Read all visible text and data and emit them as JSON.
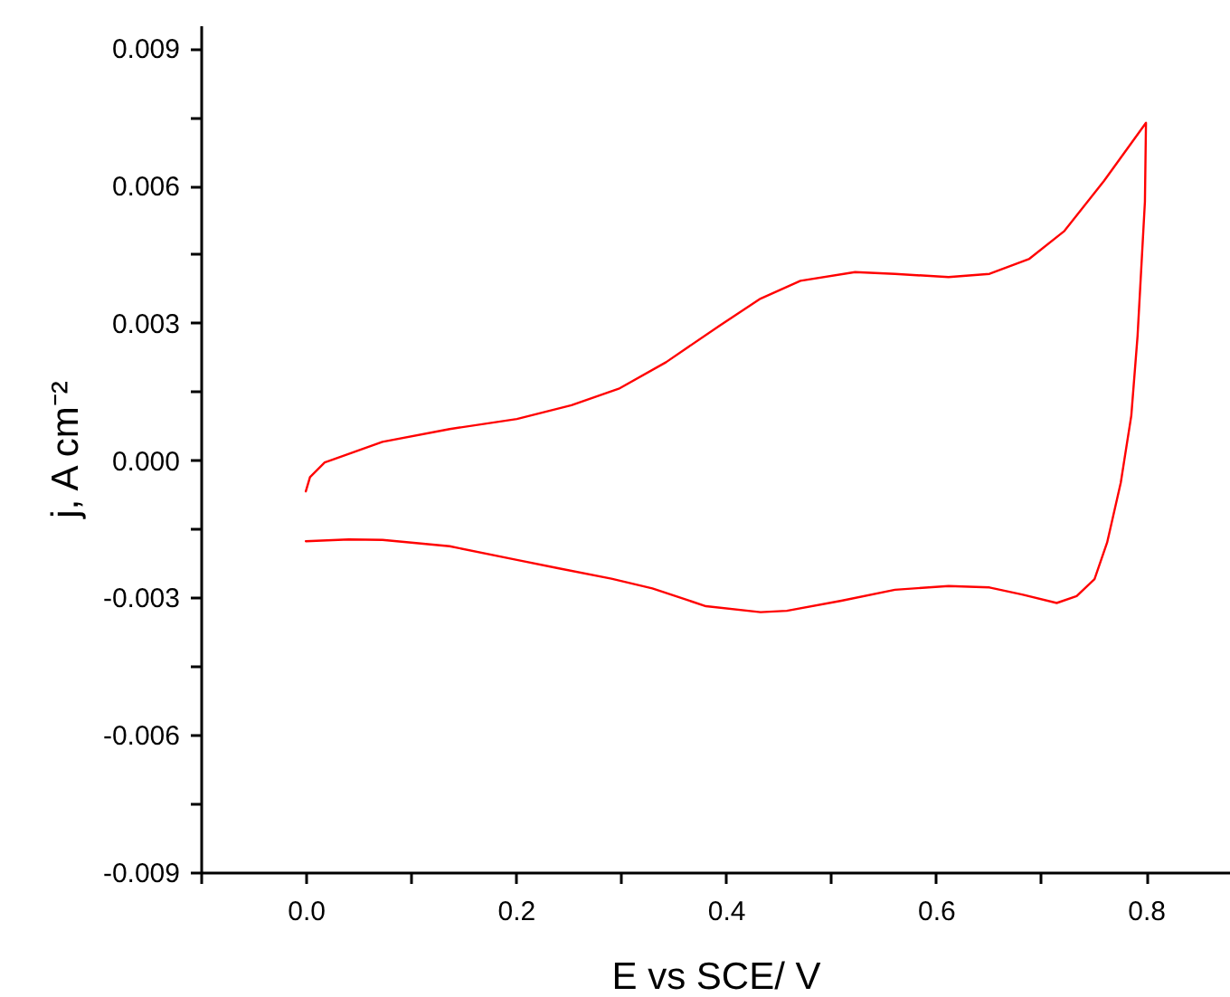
{
  "chart_data": {
    "type": "line",
    "xlabel": "E vs SCE/ V",
    "ylabel": "j, A cm⁻²",
    "xlim": [
      -0.1,
      0.88
    ],
    "ylim": [
      -0.009,
      0.0095
    ],
    "xticks": [
      {
        "value": -0.1,
        "label": null
      },
      {
        "value": 0,
        "label": "0.0"
      },
      {
        "value": 0.1,
        "label": null
      },
      0.2,
      {
        "value": 0.3,
        "label": null
      },
      0.4,
      {
        "value": 0.5,
        "label": null
      },
      0.6,
      {
        "value": 0.7,
        "label": null
      },
      0.8
    ],
    "yticks": [
      -0.009,
      {
        "value": -0.0075,
        "label": null
      },
      -0.006,
      {
        "value": -0.0045,
        "label": null
      },
      -0.003,
      {
        "value": -0.0015,
        "label": null
      },
      {
        "value": 0,
        "label": "0.000"
      },
      {
        "value": 0.0015,
        "label": null
      },
      0.003,
      {
        "value": 0.0045,
        "label": null
      },
      0.006,
      {
        "value": 0.0075,
        "label": null
      },
      0.009
    ],
    "line_style": "solid",
    "series": [
      {
        "color": "#ff0000",
        "x": [
          0,
          0.004,
          0.018,
          0.073,
          0.137,
          0.201,
          0.253,
          0.298,
          0.343,
          0.394,
          0.433,
          0.471,
          0.523,
          0.561,
          0.612,
          0.651,
          0.689,
          0.722,
          0.76,
          0.8,
          0.799,
          0.792,
          0.786,
          0.776,
          0.763,
          0.751,
          0.734,
          0.715,
          0.683,
          0.651,
          0.612,
          0.561,
          0.51,
          0.458,
          0.433,
          0.381,
          0.33,
          0.291,
          0.24,
          0.201,
          0.137,
          0.073,
          0.041,
          0
        ],
        "values": [
          -0.00068,
          -0.00037,
          -5e-05,
          0.0004,
          0.00068,
          0.0009,
          0.0012,
          0.00156,
          0.00214,
          0.00294,
          0.00353,
          0.00392,
          0.00411,
          0.00407,
          0.004,
          0.00407,
          0.0044,
          0.005,
          0.0061,
          0.00737,
          0.00565,
          0.00272,
          0.00097,
          -0.00049,
          -0.0018,
          -0.0026,
          -0.00297,
          -0.00312,
          -0.00294,
          -0.00278,
          -0.00275,
          -0.00283,
          -0.00307,
          -0.00329,
          -0.00332,
          -0.00319,
          -0.0028,
          -0.00259,
          -0.00236,
          -0.00218,
          -0.00188,
          -0.00174,
          -0.00173,
          -0.00177
        ]
      }
    ]
  }
}
